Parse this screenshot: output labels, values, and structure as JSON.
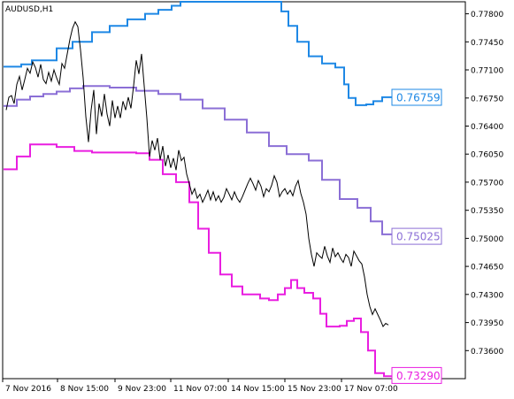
{
  "chart_data": {
    "type": "line",
    "title": "AUDUSD,H1",
    "ylim": [
      0.7325,
      0.7795
    ],
    "grid": false,
    "y_ticks": [
      "0.77800",
      "0.77450",
      "0.77100",
      "0.76750",
      "0.76400",
      "0.76050",
      "0.75700",
      "0.75350",
      "0.75000",
      "0.74650",
      "0.74300",
      "0.73950",
      "0.73600"
    ],
    "x_ticks": [
      "7 Nov 2016",
      "8 Nov 15:00",
      "9 Nov 23:00",
      "11 Nov 07:00",
      "14 Nov 15:00",
      "15 Nov 23:00",
      "17 Nov 07:00"
    ],
    "series": [
      {
        "role": "upper-band",
        "color": "#1e88e5",
        "tag": "0.76759",
        "values": [
          [
            0,
            0.7714
          ],
          [
            12,
            0.7714
          ],
          [
            20,
            0.7717
          ],
          [
            32,
            0.7722
          ],
          [
            44,
            0.7722
          ],
          [
            60,
            0.7737
          ],
          [
            78,
            0.7745
          ],
          [
            100,
            0.7757
          ],
          [
            120,
            0.7765
          ],
          [
            140,
            0.7773
          ],
          [
            160,
            0.778
          ],
          [
            175,
            0.7785
          ],
          [
            190,
            0.779
          ],
          [
            200,
            0.7795
          ],
          [
            300,
            0.7795
          ],
          [
            314,
            0.7783
          ],
          [
            322,
            0.7765
          ],
          [
            332,
            0.7745
          ],
          [
            345,
            0.7727
          ],
          [
            360,
            0.7718
          ],
          [
            375,
            0.7713
          ],
          [
            385,
            0.7692
          ],
          [
            390,
            0.7675
          ],
          [
            398,
            0.7666
          ],
          [
            410,
            0.7667
          ],
          [
            418,
            0.7671
          ],
          [
            428,
            0.7676
          ],
          [
            440,
            0.7675
          ]
        ]
      },
      {
        "role": "middle-line",
        "color": "#8b6fd6",
        "tag": "0.75025",
        "values": [
          [
            0,
            0.7665
          ],
          [
            15,
            0.7673
          ],
          [
            30,
            0.7677
          ],
          [
            45,
            0.768
          ],
          [
            60,
            0.7683
          ],
          [
            75,
            0.7687
          ],
          [
            90,
            0.769
          ],
          [
            120,
            0.7688
          ],
          [
            150,
            0.7684
          ],
          [
            175,
            0.768
          ],
          [
            200,
            0.7673
          ],
          [
            225,
            0.7662
          ],
          [
            250,
            0.7648
          ],
          [
            275,
            0.7632
          ],
          [
            300,
            0.7615
          ],
          [
            320,
            0.7605
          ],
          [
            345,
            0.7597
          ],
          [
            360,
            0.7573
          ],
          [
            380,
            0.7549
          ],
          [
            400,
            0.7538
          ],
          [
            415,
            0.7521
          ],
          [
            428,
            0.7505
          ],
          [
            440,
            0.7502
          ]
        ]
      },
      {
        "role": "lower-band",
        "color": "#e91ee0",
        "tag": "0.73290",
        "values": [
          [
            0,
            0.7586
          ],
          [
            15,
            0.7602
          ],
          [
            30,
            0.7617
          ],
          [
            45,
            0.7617
          ],
          [
            60,
            0.7614
          ],
          [
            80,
            0.7609
          ],
          [
            100,
            0.7607
          ],
          [
            125,
            0.7607
          ],
          [
            150,
            0.7606
          ],
          [
            165,
            0.7598
          ],
          [
            180,
            0.758
          ],
          [
            195,
            0.757
          ],
          [
            210,
            0.7545
          ],
          [
            220,
            0.7512
          ],
          [
            232,
            0.7482
          ],
          [
            245,
            0.7455
          ],
          [
            258,
            0.744
          ],
          [
            270,
            0.743
          ],
          [
            290,
            0.7425
          ],
          [
            300,
            0.7423
          ],
          [
            310,
            0.743
          ],
          [
            318,
            0.7438
          ],
          [
            325,
            0.7448
          ],
          [
            332,
            0.7438
          ],
          [
            340,
            0.7432
          ],
          [
            350,
            0.7425
          ],
          [
            358,
            0.7406
          ],
          [
            365,
            0.739
          ],
          [
            380,
            0.7391
          ],
          [
            388,
            0.7397
          ],
          [
            396,
            0.74
          ],
          [
            404,
            0.7383
          ],
          [
            412,
            0.736
          ],
          [
            420,
            0.7332
          ],
          [
            430,
            0.7328
          ],
          [
            440,
            0.7329
          ]
        ]
      },
      {
        "role": "price",
        "color": "#000000",
        "values": [
          [
            3,
            0.766
          ],
          [
            6,
            0.7676
          ],
          [
            9,
            0.7678
          ],
          [
            12,
            0.7668
          ],
          [
            15,
            0.7692
          ],
          [
            18,
            0.7702
          ],
          [
            21,
            0.7685
          ],
          [
            24,
            0.7698
          ],
          [
            27,
            0.7712
          ],
          [
            30,
            0.7706
          ],
          [
            33,
            0.772
          ],
          [
            36,
            0.7713
          ],
          [
            39,
            0.7701
          ],
          [
            42,
            0.7717
          ],
          [
            45,
            0.7698
          ],
          [
            48,
            0.7693
          ],
          [
            51,
            0.7707
          ],
          [
            54,
            0.7696
          ],
          [
            57,
            0.771
          ],
          [
            60,
            0.77
          ],
          [
            63,
            0.7692
          ],
          [
            66,
            0.7718
          ],
          [
            69,
            0.7712
          ],
          [
            72,
            0.773
          ],
          [
            75,
            0.7748
          ],
          [
            78,
            0.7762
          ],
          [
            81,
            0.777
          ],
          [
            84,
            0.7764
          ],
          [
            87,
            0.7735
          ],
          [
            90,
            0.77
          ],
          [
            93,
            0.7652
          ],
          [
            96,
            0.762
          ],
          [
            99,
            0.766
          ],
          [
            102,
            0.7685
          ],
          [
            105,
            0.763
          ],
          [
            108,
            0.7668
          ],
          [
            111,
            0.7652
          ],
          [
            114,
            0.768
          ],
          [
            117,
            0.7655
          ],
          [
            120,
            0.764
          ],
          [
            123,
            0.7672
          ],
          [
            126,
            0.765
          ],
          [
            129,
            0.7665
          ],
          [
            132,
            0.765
          ],
          [
            135,
            0.7671
          ],
          [
            138,
            0.766
          ],
          [
            141,
            0.7676
          ],
          [
            144,
            0.7662
          ],
          [
            147,
            0.769
          ],
          [
            150,
            0.7722
          ],
          [
            153,
            0.7705
          ],
          [
            156,
            0.773
          ],
          [
            159,
            0.769
          ],
          [
            162,
            0.765
          ],
          [
            165,
            0.7602
          ],
          [
            168,
            0.7622
          ],
          [
            171,
            0.761
          ],
          [
            174,
            0.7625
          ],
          [
            177,
            0.7598
          ],
          [
            180,
            0.7615
          ],
          [
            183,
            0.759
          ],
          [
            186,
            0.7604
          ],
          [
            189,
            0.7588
          ],
          [
            192,
            0.76
          ],
          [
            195,
            0.7585
          ],
          [
            198,
            0.761
          ],
          [
            201,
            0.7597
          ],
          [
            204,
            0.7601
          ],
          [
            207,
            0.758
          ],
          [
            210,
            0.7568
          ],
          [
            213,
            0.7555
          ],
          [
            216,
            0.7562
          ],
          [
            219,
            0.755
          ],
          [
            222,
            0.7555
          ],
          [
            225,
            0.7545
          ],
          [
            228,
            0.7552
          ],
          [
            231,
            0.756
          ],
          [
            234,
            0.7548
          ],
          [
            237,
            0.7558
          ],
          [
            240,
            0.7547
          ],
          [
            243,
            0.7553
          ],
          [
            246,
            0.7545
          ],
          [
            249,
            0.7551
          ],
          [
            252,
            0.7562
          ],
          [
            255,
            0.7555
          ],
          [
            258,
            0.7548
          ],
          [
            261,
            0.7558
          ],
          [
            264,
            0.755
          ],
          [
            267,
            0.7545
          ],
          [
            270,
            0.7552
          ],
          [
            273,
            0.756
          ],
          [
            276,
            0.7568
          ],
          [
            279,
            0.7575
          ],
          [
            282,
            0.7568
          ],
          [
            285,
            0.756
          ],
          [
            288,
            0.7572
          ],
          [
            291,
            0.7565
          ],
          [
            294,
            0.7552
          ],
          [
            297,
            0.7562
          ],
          [
            300,
            0.7558
          ],
          [
            303,
            0.7566
          ],
          [
            306,
            0.7578
          ],
          [
            309,
            0.757
          ],
          [
            312,
            0.7552
          ],
          [
            315,
            0.7558
          ],
          [
            318,
            0.7562
          ],
          [
            321,
            0.7555
          ],
          [
            324,
            0.756
          ],
          [
            327,
            0.7553
          ],
          [
            330,
            0.7565
          ],
          [
            333,
            0.7572
          ],
          [
            336,
            0.7556
          ],
          [
            339,
            0.7545
          ],
          [
            342,
            0.753
          ],
          [
            345,
            0.75
          ],
          [
            348,
            0.748
          ],
          [
            351,
            0.7465
          ],
          [
            354,
            0.7482
          ],
          [
            357,
            0.7478
          ],
          [
            360,
            0.7475
          ],
          [
            363,
            0.749
          ],
          [
            366,
            0.7478
          ],
          [
            369,
            0.747
          ],
          [
            372,
            0.7488
          ],
          [
            375,
            0.7477
          ],
          [
            378,
            0.7482
          ],
          [
            381,
            0.7475
          ],
          [
            384,
            0.747
          ],
          [
            387,
            0.748
          ],
          [
            390,
            0.7476
          ],
          [
            393,
            0.7465
          ],
          [
            396,
            0.7484
          ],
          [
            399,
            0.7478
          ],
          [
            402,
            0.7472
          ],
          [
            405,
            0.7468
          ],
          [
            408,
            0.7452
          ],
          [
            411,
            0.743
          ],
          [
            414,
            0.7415
          ],
          [
            417,
            0.7405
          ],
          [
            420,
            0.7412
          ],
          [
            423,
            0.7405
          ],
          [
            426,
            0.7398
          ],
          [
            429,
            0.739
          ],
          [
            432,
            0.7394
          ],
          [
            435,
            0.7392
          ]
        ]
      }
    ]
  }
}
